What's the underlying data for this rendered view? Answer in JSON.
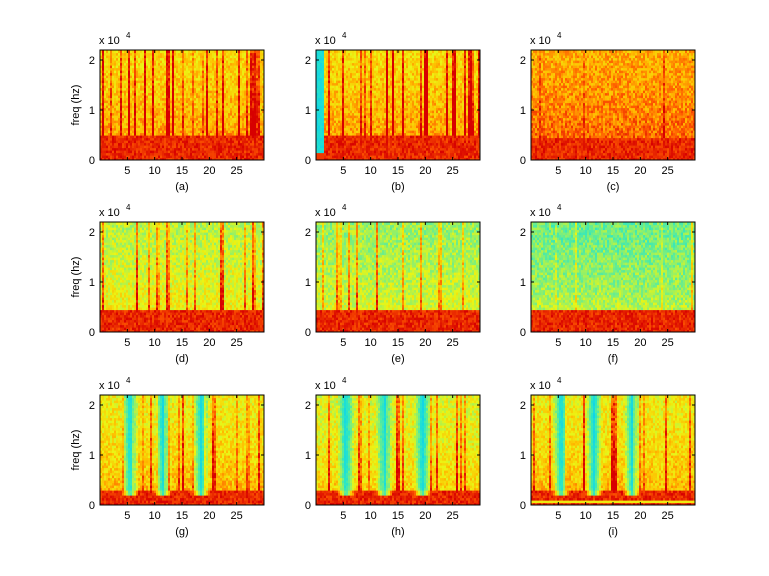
{
  "figure": {
    "background": "#ffffff"
  },
  "chart_data": [
    {
      "type": "heatmap",
      "label": "(a)",
      "ylabel": "freq (hz)",
      "y_multiplier": "x 10",
      "y_exponent": "4",
      "xlim": [
        0,
        30
      ],
      "ylim": [
        0,
        2.2
      ],
      "xticks": [
        5,
        10,
        15,
        20,
        25
      ],
      "yticks": [
        0,
        1,
        2
      ],
      "profile": {
        "red_band_top": 0.5,
        "upper_level": 0.55,
        "stripe_density": 0.7,
        "stripe_strength": 0.35,
        "onset_gap": 0
      }
    },
    {
      "type": "heatmap",
      "label": "(b)",
      "ylabel": "",
      "y_multiplier": "x 10",
      "y_exponent": "4",
      "xlim": [
        0,
        30
      ],
      "ylim": [
        0,
        2.2
      ],
      "xticks": [
        5,
        10,
        15,
        20,
        25
      ],
      "yticks": [
        0,
        1,
        2
      ],
      "profile": {
        "red_band_top": 0.5,
        "upper_level": 0.55,
        "stripe_density": 0.75,
        "stripe_strength": 0.45,
        "onset_gap": 1.5
      }
    },
    {
      "type": "heatmap",
      "label": "(c)",
      "ylabel": "",
      "y_multiplier": "x 10",
      "y_exponent": "4",
      "xlim": [
        0,
        30
      ],
      "ylim": [
        0,
        2.2
      ],
      "xticks": [
        5,
        10,
        15,
        20,
        25
      ],
      "yticks": [
        0,
        1,
        2
      ],
      "profile": {
        "red_band_top": 0.45,
        "upper_level": 0.65,
        "stripe_density": 0.25,
        "stripe_strength": 0.15,
        "onset_gap": 0
      }
    },
    {
      "type": "heatmap",
      "label": "(d)",
      "ylabel": "freq (hz)",
      "y_multiplier": "x 10",
      "y_exponent": "4",
      "xlim": [
        0,
        30
      ],
      "ylim": [
        0,
        2.2
      ],
      "xticks": [
        5,
        10,
        15,
        20,
        25
      ],
      "yticks": [
        0,
        1,
        2
      ],
      "profile": {
        "red_band_top": 0.45,
        "upper_level": 0.38,
        "stripe_density": 0.55,
        "stripe_strength": 0.35,
        "onset_gap": 0
      }
    },
    {
      "type": "heatmap",
      "label": "(e)",
      "ylabel": "",
      "y_multiplier": "x 10",
      "y_exponent": "4",
      "xlim": [
        0,
        30
      ],
      "ylim": [
        0,
        2.2
      ],
      "xticks": [
        5,
        10,
        15,
        20,
        25
      ],
      "yticks": [
        0,
        1,
        2
      ],
      "profile": {
        "red_band_top": 0.45,
        "upper_level": 0.32,
        "stripe_density": 0.55,
        "stripe_strength": 0.35,
        "onset_gap": 0
      }
    },
    {
      "type": "heatmap",
      "label": "(f)",
      "ylabel": "",
      "y_multiplier": "x 10",
      "y_exponent": "4",
      "xlim": [
        0,
        30
      ],
      "ylim": [
        0,
        2.2
      ],
      "xticks": [
        5,
        10,
        15,
        20,
        25
      ],
      "yticks": [
        0,
        1,
        2
      ],
      "profile": {
        "red_band_top": 0.45,
        "upper_level": 0.25,
        "stripe_density": 0.2,
        "stripe_strength": 0.2,
        "onset_gap": 0
      }
    },
    {
      "type": "heatmap",
      "label": "(g)",
      "ylabel": "freq (hz)",
      "y_multiplier": "x 10",
      "y_exponent": "4",
      "xlim": [
        0,
        30
      ],
      "ylim": [
        0,
        2.2
      ],
      "xticks": [
        5,
        10,
        15,
        20,
        25
      ],
      "yticks": [
        0,
        1,
        2
      ],
      "profile": {
        "red_band_top": 0.3,
        "upper_level": 0.5,
        "stripe_density": 0.5,
        "stripe_strength": 0.3,
        "onset_gap": 0,
        "quiet_gaps": [
          5.5,
          11.5,
          18.5
        ]
      }
    },
    {
      "type": "heatmap",
      "label": "(h)",
      "ylabel": "",
      "y_multiplier": "x 10",
      "y_exponent": "4",
      "xlim": [
        0,
        30
      ],
      "ylim": [
        0,
        2.2
      ],
      "xticks": [
        5,
        10,
        15,
        20,
        25
      ],
      "yticks": [
        0,
        1,
        2
      ],
      "profile": {
        "red_band_top": 0.3,
        "upper_level": 0.45,
        "stripe_density": 0.5,
        "stripe_strength": 0.3,
        "onset_gap": 0,
        "quiet_gaps": [
          5.5,
          12.5,
          19.5
        ]
      }
    },
    {
      "type": "heatmap",
      "label": "(i)",
      "ylabel": "",
      "y_multiplier": "x 10",
      "y_exponent": "4",
      "xlim": [
        0,
        30
      ],
      "ylim": [
        0,
        2.2
      ],
      "xticks": [
        5,
        10,
        15,
        20,
        25
      ],
      "yticks": [
        0,
        1,
        2
      ],
      "profile": {
        "red_band_top": 0.3,
        "upper_level": 0.5,
        "stripe_density": 0.5,
        "stripe_strength": 0.3,
        "onset_gap": 0,
        "quiet_gaps": [
          5.5,
          11.5,
          18.5
        ],
        "hum_line": 0.08
      }
    }
  ]
}
